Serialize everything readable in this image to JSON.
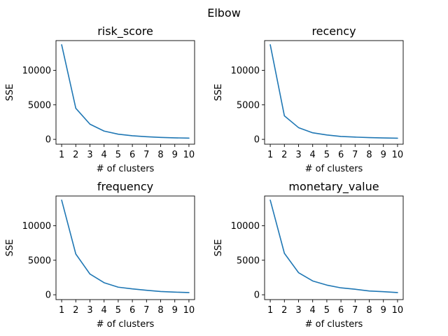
{
  "figure": {
    "title": "Elbow"
  },
  "chart_data": [
    {
      "type": "line",
      "title": "risk_score",
      "xlabel": "# of clusters",
      "ylabel": "SSE",
      "x": [
        1,
        2,
        3,
        4,
        5,
        6,
        7,
        8,
        9,
        10
      ],
      "xticks": [
        "1",
        "2",
        "3",
        "4",
        "5",
        "6",
        "7",
        "8",
        "9",
        "10"
      ],
      "yticks": [
        0,
        5000,
        10000
      ],
      "ytick_labels": [
        "0",
        "5000",
        "10000"
      ],
      "xlim": [
        0.6,
        10.4
      ],
      "ylim": [
        -700,
        14300
      ],
      "grid": false,
      "color": "#1f77b4",
      "series": [
        {
          "values": [
            13700,
            4500,
            2200,
            1200,
            750,
            520,
            380,
            280,
            220,
            180
          ]
        }
      ]
    },
    {
      "type": "line",
      "title": "recency",
      "xlabel": "# of clusters",
      "ylabel": "SSE",
      "x": [
        1,
        2,
        3,
        4,
        5,
        6,
        7,
        8,
        9,
        10
      ],
      "xticks": [
        "1",
        "2",
        "3",
        "4",
        "5",
        "6",
        "7",
        "8",
        "9",
        "10"
      ],
      "yticks": [
        0,
        5000,
        10000
      ],
      "ytick_labels": [
        "0",
        "5000",
        "10000"
      ],
      "xlim": [
        0.6,
        10.4
      ],
      "ylim": [
        -700,
        14300
      ],
      "grid": false,
      "color": "#1f77b4",
      "series": [
        {
          "values": [
            13700,
            3400,
            1700,
            950,
            640,
            420,
            330,
            260,
            210,
            170
          ]
        }
      ]
    },
    {
      "type": "line",
      "title": "frequency",
      "xlabel": "# of clusters",
      "ylabel": "SSE",
      "x": [
        1,
        2,
        3,
        4,
        5,
        6,
        7,
        8,
        9,
        10
      ],
      "xticks": [
        "1",
        "2",
        "3",
        "4",
        "5",
        "6",
        "7",
        "8",
        "9",
        "10"
      ],
      "yticks": [
        0,
        5000,
        10000
      ],
      "ytick_labels": [
        "0",
        "5000",
        "10000"
      ],
      "xlim": [
        0.6,
        10.4
      ],
      "ylim": [
        -700,
        14300
      ],
      "grid": false,
      "color": "#1f77b4",
      "series": [
        {
          "values": [
            13700,
            5900,
            3000,
            1750,
            1100,
            850,
            650,
            470,
            380,
            320
          ]
        }
      ]
    },
    {
      "type": "line",
      "title": "monetary_value",
      "xlabel": "# of clusters",
      "ylabel": "SSE",
      "x": [
        1,
        2,
        3,
        4,
        5,
        6,
        7,
        8,
        9,
        10
      ],
      "xticks": [
        "1",
        "2",
        "3",
        "4",
        "5",
        "6",
        "7",
        "8",
        "9",
        "10"
      ],
      "yticks": [
        0,
        5000,
        10000
      ],
      "ytick_labels": [
        "0",
        "5000",
        "10000"
      ],
      "xlim": [
        0.6,
        10.4
      ],
      "ylim": [
        -700,
        14300
      ],
      "grid": false,
      "color": "#1f77b4",
      "series": [
        {
          "values": [
            13700,
            6000,
            3200,
            2000,
            1400,
            1000,
            800,
            550,
            450,
            320
          ]
        }
      ]
    }
  ]
}
